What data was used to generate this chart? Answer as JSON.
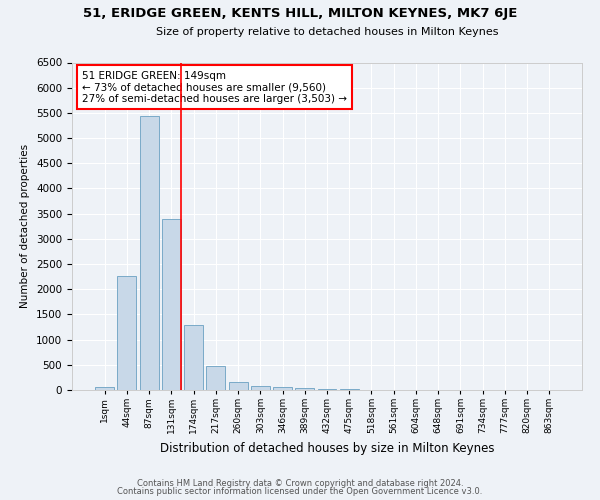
{
  "title": "51, ERIDGE GREEN, KENTS HILL, MILTON KEYNES, MK7 6JE",
  "subtitle": "Size of property relative to detached houses in Milton Keynes",
  "xlabel": "Distribution of detached houses by size in Milton Keynes",
  "ylabel": "Number of detached properties",
  "bar_color": "#c8d8e8",
  "bar_edge_color": "#7aaac8",
  "categories": [
    "1sqm",
    "44sqm",
    "87sqm",
    "131sqm",
    "174sqm",
    "217sqm",
    "260sqm",
    "303sqm",
    "346sqm",
    "389sqm",
    "432sqm",
    "475sqm",
    "518sqm",
    "561sqm",
    "604sqm",
    "648sqm",
    "691sqm",
    "734sqm",
    "777sqm",
    "820sqm",
    "863sqm"
  ],
  "values": [
    60,
    2270,
    5430,
    3390,
    1290,
    480,
    165,
    80,
    55,
    40,
    25,
    15,
    8,
    4,
    2,
    1,
    1,
    0,
    0,
    0,
    0
  ],
  "ylim": [
    0,
    6500
  ],
  "yticks": [
    0,
    500,
    1000,
    1500,
    2000,
    2500,
    3000,
    3500,
    4000,
    4500,
    5000,
    5500,
    6000,
    6500
  ],
  "property_label": "51 ERIDGE GREEN: 149sqm",
  "annotation_line1": "← 73% of detached houses are smaller (9,560)",
  "annotation_line2": "27% of semi-detached houses are larger (3,503) →",
  "footnote1": "Contains HM Land Registry data © Crown copyright and database right 2024.",
  "footnote2": "Contains public sector information licensed under the Open Government Licence v3.0.",
  "bg_color": "#eef2f7"
}
